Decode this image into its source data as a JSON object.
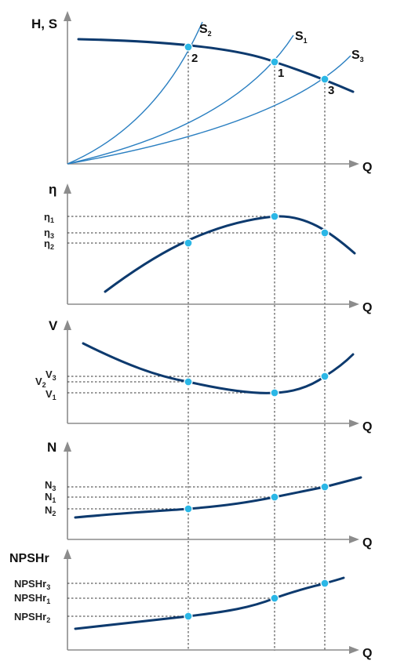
{
  "axes": {
    "q": "Q",
    "hs": "H, S",
    "eta": "η",
    "v": "V",
    "n": "N",
    "npsh": "NPSHr"
  },
  "head_panel": {
    "curves": {
      "s2": "S",
      "s2_sub": "2",
      "s1": "S",
      "s1_sub": "1",
      "s3": "S",
      "s3_sub": "3"
    },
    "points": [
      "2",
      "1",
      "3"
    ]
  },
  "eta_panel": {
    "ticks": [
      {
        "base": "η",
        "sub": "1"
      },
      {
        "base": "η",
        "sub": "3"
      },
      {
        "base": "η",
        "sub": "2"
      }
    ]
  },
  "v_panel": {
    "ticks": [
      {
        "base": "V",
        "sub": "3"
      },
      {
        "base": "V",
        "sub": "2"
      },
      {
        "base": "V",
        "sub": "1"
      }
    ]
  },
  "n_panel": {
    "ticks": [
      {
        "base": "N",
        "sub": "3"
      },
      {
        "base": "N",
        "sub": "1"
      },
      {
        "base": "N",
        "sub": "2"
      }
    ]
  },
  "npsh_panel": {
    "ticks": [
      {
        "base": "NPSHr",
        "sub": "3"
      },
      {
        "base": "NPSHr",
        "sub": "1"
      },
      {
        "base": "NPSHr",
        "sub": "2"
      }
    ]
  }
}
